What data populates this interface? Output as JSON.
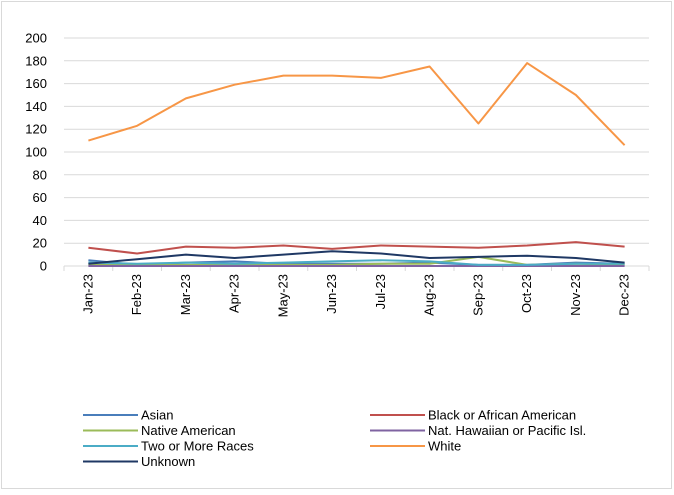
{
  "chart_data": {
    "type": "line",
    "title": "",
    "xlabel": "",
    "ylabel": "",
    "ylim": [
      0,
      200
    ],
    "yticks": [
      0,
      20,
      40,
      60,
      80,
      100,
      120,
      140,
      160,
      180,
      200
    ],
    "grid": true,
    "legend_position": "bottom",
    "categories": [
      "Jan-23",
      "Feb-23",
      "Mar-23",
      "Apr-23",
      "May-23",
      "Jun-23",
      "Jul-23",
      "Aug-23",
      "Sep-23",
      "Oct-23",
      "Nov-23",
      "Dec-23"
    ],
    "series": [
      {
        "name": "Asian",
        "color": "#4a7ebb",
        "values": [
          5,
          1,
          3,
          4,
          2,
          2,
          2,
          3,
          1,
          1,
          3,
          2
        ]
      },
      {
        "name": "Black or African American",
        "color": "#c0504d",
        "values": [
          16,
          11,
          17,
          16,
          18,
          15,
          18,
          17,
          16,
          18,
          21,
          17
        ]
      },
      {
        "name": "Native American",
        "color": "#9bbb59",
        "values": [
          1,
          1,
          1,
          1,
          1,
          1,
          2,
          2,
          8,
          1,
          2,
          1
        ]
      },
      {
        "name": "Nat. Hawaiian or Pacific Isl.",
        "color": "#7f63a1",
        "values": [
          0,
          0,
          0,
          0,
          0,
          0,
          0,
          0,
          0,
          0,
          0,
          0
        ]
      },
      {
        "name": "Two or More Races",
        "color": "#4bacc6",
        "values": [
          3,
          2,
          3,
          2,
          3,
          4,
          5,
          4,
          1,
          1,
          2,
          2
        ]
      },
      {
        "name": "White",
        "color": "#f79646",
        "values": [
          110,
          123,
          147,
          159,
          167,
          167,
          165,
          175,
          125,
          178,
          150,
          106
        ]
      },
      {
        "name": "Unknown",
        "color": "#1f3864",
        "values": [
          2,
          6,
          10,
          7,
          10,
          13,
          11,
          7,
          8,
          9,
          7,
          3
        ]
      }
    ]
  }
}
